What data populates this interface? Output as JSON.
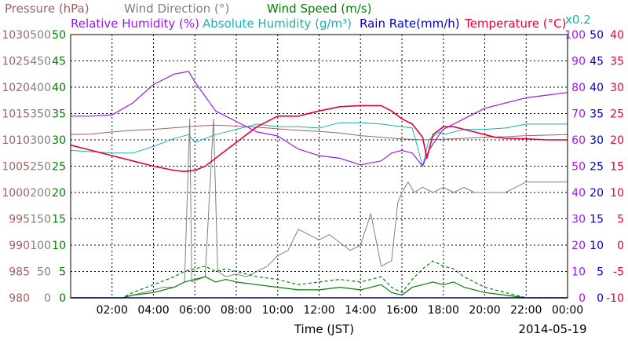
{
  "colors": {
    "pressure": "#a06262",
    "wind_direction": "#808080",
    "wind_speed": "#008000",
    "relative_humidity": "#9b19e6",
    "absolute_humidity": "#1ab2ad",
    "rain_rate": "#0000cc",
    "temperature": "#e6003a",
    "grid": "#000000"
  },
  "chart_data": {
    "type": "line",
    "legend": {
      "row1": [
        {
          "key": "pressure",
          "text": "Pressure (hPa)"
        },
        {
          "key": "wind_direction",
          "text": "Wind Direction (°)"
        },
        {
          "key": "wind_speed",
          "text": "Wind Speed (m/s)"
        }
      ],
      "row2": [
        {
          "key": "relative_humidity",
          "text": "Relative Humidity (%)"
        },
        {
          "key": "absolute_humidity",
          "text": "Absolute Humidity (g/m³)"
        },
        {
          "key": "rain_rate",
          "text": "Rain Rate(mm/h)"
        },
        {
          "key": "temperature",
          "text": "Temperature (°C)"
        }
      ],
      "rain_scale": "x0.2"
    },
    "xlabel": "Time (JST)",
    "date": "2014-05-19",
    "x_range": [
      "00:00",
      "24:00"
    ],
    "x_ticks": [
      "02:00",
      "04:00",
      "06:00",
      "08:00",
      "10:00",
      "12:00",
      "14:00",
      "16:00",
      "18:00",
      "20:00",
      "22:00",
      "00:00"
    ],
    "axes": {
      "pressure": {
        "range": [
          980,
          1030
        ],
        "ticks": [
          "980",
          "985",
          "990",
          "995",
          "1000",
          "1005",
          "1010",
          "1015",
          "1020",
          "1025",
          "1030"
        ]
      },
      "wind_direction": {
        "range": [
          0,
          500
        ],
        "ticks": [
          "0",
          "50",
          "100",
          "150",
          "200",
          "250",
          "300",
          "350",
          "400",
          "450",
          "500"
        ]
      },
      "wind_speed": {
        "range": [
          0,
          50
        ],
        "ticks": [
          "0",
          "5",
          "10",
          "15",
          "20",
          "25",
          "30",
          "35",
          "40",
          "45",
          "50"
        ]
      },
      "relative_humidity": {
        "range": [
          0,
          100
        ],
        "ticks": [
          "0",
          "10",
          "20",
          "30",
          "40",
          "50",
          "60",
          "70",
          "80",
          "90",
          "100"
        ]
      },
      "rain_rate": {
        "range": [
          0,
          50
        ],
        "ticks": [
          "0",
          "5",
          "10",
          "15",
          "20",
          "25",
          "30",
          "35",
          "40",
          "45",
          "50"
        ]
      },
      "temperature": {
        "range": [
          -10,
          40
        ],
        "ticks": [
          "-10",
          "-5",
          "0",
          "5",
          "10",
          "15",
          "20",
          "25",
          "30",
          "35",
          "40"
        ]
      }
    },
    "grid": true,
    "series": [
      {
        "key": "pressure",
        "name": "Pressure (hPa)",
        "axis": "pressure",
        "points": [
          [
            0,
            1011
          ],
          [
            1,
            1011.1
          ],
          [
            2,
            1011.5
          ],
          [
            3,
            1011.8
          ],
          [
            4,
            1012
          ],
          [
            5,
            1012.3
          ],
          [
            6,
            1012.6
          ],
          [
            7,
            1012.8
          ],
          [
            8,
            1012.6
          ],
          [
            9,
            1012.4
          ],
          [
            10,
            1012.1
          ],
          [
            11,
            1011.8
          ],
          [
            12,
            1011.6
          ],
          [
            13,
            1011.3
          ],
          [
            14,
            1010.8
          ],
          [
            15,
            1010.5
          ],
          [
            16,
            1010.2
          ],
          [
            17,
            1010
          ],
          [
            18,
            1010.1
          ],
          [
            19,
            1010.3
          ],
          [
            20,
            1010.5
          ],
          [
            21,
            1010.6
          ],
          [
            22,
            1010.8
          ],
          [
            23,
            1010.9
          ],
          [
            24,
            1011
          ]
        ]
      },
      {
        "key": "temperature",
        "name": "Temperature (°C)",
        "axis": "temperature",
        "points": [
          [
            0,
            19
          ],
          [
            1,
            18
          ],
          [
            2,
            17
          ],
          [
            3,
            16
          ],
          [
            4,
            15
          ],
          [
            5,
            14.2
          ],
          [
            5.5,
            14
          ],
          [
            6,
            14.2
          ],
          [
            6.5,
            15
          ],
          [
            7,
            16.5
          ],
          [
            8,
            19.5
          ],
          [
            9,
            22.5
          ],
          [
            10,
            24.5
          ],
          [
            11,
            24.5
          ],
          [
            12,
            25.5
          ],
          [
            13,
            26.3
          ],
          [
            14,
            26.5
          ],
          [
            15,
            26.5
          ],
          [
            15.5,
            25.5
          ],
          [
            16,
            24
          ],
          [
            16.5,
            23
          ],
          [
            17,
            20.5
          ],
          [
            17.2,
            16.5
          ],
          [
            17.5,
            21
          ],
          [
            18,
            22.5
          ],
          [
            18.5,
            22.5
          ],
          [
            19,
            22
          ],
          [
            19.5,
            21.5
          ],
          [
            20,
            21
          ],
          [
            20.5,
            20.5
          ],
          [
            21,
            20.3
          ],
          [
            22,
            20.2
          ],
          [
            23,
            20
          ],
          [
            24,
            20
          ]
        ]
      },
      {
        "key": "relative_humidity",
        "name": "Relative Humidity (%)",
        "axis": "relative_humidity",
        "points": [
          [
            0,
            69
          ],
          [
            1,
            69
          ],
          [
            2,
            69.5
          ],
          [
            3,
            74
          ],
          [
            4,
            81
          ],
          [
            5,
            85
          ],
          [
            5.7,
            86
          ],
          [
            6,
            82
          ],
          [
            7,
            71
          ],
          [
            8,
            67
          ],
          [
            9,
            63
          ],
          [
            10,
            61.5
          ],
          [
            11,
            56.5
          ],
          [
            12,
            54
          ],
          [
            13,
            53
          ],
          [
            14,
            50.5
          ],
          [
            15,
            52
          ],
          [
            15.5,
            55
          ],
          [
            16,
            56
          ],
          [
            16.5,
            55
          ],
          [
            17,
            50
          ],
          [
            17.3,
            56
          ],
          [
            17.8,
            62
          ],
          [
            18,
            64
          ],
          [
            18.5,
            66
          ],
          [
            19,
            68
          ],
          [
            20,
            72
          ],
          [
            21,
            74
          ],
          [
            22,
            76
          ],
          [
            23,
            77
          ],
          [
            24,
            78
          ]
        ]
      },
      {
        "key": "absolute_humidity",
        "name": "Absolute Humidity (g/m³)",
        "axis": "relative_humidity",
        "points": [
          [
            0,
            56
          ],
          [
            1,
            55.5
          ],
          [
            2,
            55
          ],
          [
            3,
            55
          ],
          [
            4,
            57.5
          ],
          [
            5,
            60.5
          ],
          [
            5.7,
            62
          ],
          [
            6,
            59
          ],
          [
            7,
            62
          ],
          [
            8,
            64
          ],
          [
            9,
            66
          ],
          [
            10,
            65
          ],
          [
            11,
            65
          ],
          [
            12,
            64.5
          ],
          [
            13,
            66.5
          ],
          [
            14,
            66.5
          ],
          [
            15,
            66
          ],
          [
            16,
            65
          ],
          [
            16.5,
            64.5
          ],
          [
            17,
            50
          ],
          [
            17.3,
            60
          ],
          [
            17.8,
            63
          ],
          [
            18,
            62
          ],
          [
            19,
            64
          ],
          [
            20,
            64
          ],
          [
            21,
            64.5
          ],
          [
            22,
            66
          ],
          [
            23,
            66
          ],
          [
            24,
            66
          ]
        ]
      },
      {
        "key": "wind_direction",
        "name": "Wind Direction (°)",
        "axis": "wind_direction",
        "points": [
          [
            0,
            0
          ],
          [
            2,
            0
          ],
          [
            2.5,
            0
          ],
          [
            3,
            5
          ],
          [
            3.5,
            10
          ],
          [
            4,
            15
          ],
          [
            4.5,
            20
          ],
          [
            5,
            20
          ],
          [
            5.5,
            30
          ],
          [
            5.75,
            340
          ],
          [
            5.85,
            30
          ],
          [
            6.5,
            40
          ],
          [
            6.9,
            340
          ],
          [
            7.1,
            50
          ],
          [
            7.5,
            40
          ],
          [
            8,
            45
          ],
          [
            8.5,
            40
          ],
          [
            9,
            50
          ],
          [
            9.5,
            60
          ],
          [
            10,
            80
          ],
          [
            10.5,
            90
          ],
          [
            11,
            130
          ],
          [
            11.5,
            120
          ],
          [
            12,
            110
          ],
          [
            12.5,
            120
          ],
          [
            13,
            105
          ],
          [
            13.5,
            90
          ],
          [
            14,
            100
          ],
          [
            14.5,
            160
          ],
          [
            15,
            60
          ],
          [
            15.5,
            70
          ],
          [
            15.8,
            180
          ],
          [
            16,
            200
          ],
          [
            16.3,
            220
          ],
          [
            16.6,
            200
          ],
          [
            17,
            210
          ],
          [
            17.5,
            200
          ],
          [
            18,
            210
          ],
          [
            18.5,
            200
          ],
          [
            19,
            210
          ],
          [
            19.5,
            200
          ],
          [
            20,
            200
          ],
          [
            20.5,
            200
          ],
          [
            21,
            200
          ],
          [
            21.5,
            210
          ],
          [
            22,
            220
          ],
          [
            22.5,
            220
          ],
          [
            23,
            220
          ],
          [
            24,
            220
          ]
        ]
      },
      {
        "key": "wind_speed_avg",
        "name": "Wind Speed (m/s)",
        "axis": "wind_speed",
        "points": [
          [
            0,
            0
          ],
          [
            2.5,
            0
          ],
          [
            3,
            0.5
          ],
          [
            4,
            1
          ],
          [
            5,
            2
          ],
          [
            5.5,
            3
          ],
          [
            6,
            3.5
          ],
          [
            6.5,
            4
          ],
          [
            7,
            3
          ],
          [
            7.5,
            3.5
          ],
          [
            8,
            3
          ],
          [
            9,
            2.5
          ],
          [
            10,
            2
          ],
          [
            11,
            1.5
          ],
          [
            12,
            1.5
          ],
          [
            13,
            2
          ],
          [
            14,
            1.5
          ],
          [
            15,
            2.5
          ],
          [
            15.5,
            1
          ],
          [
            16,
            0.5
          ],
          [
            16.5,
            2
          ],
          [
            17,
            2.5
          ],
          [
            17.5,
            3
          ],
          [
            18,
            2.5
          ],
          [
            18.5,
            3
          ],
          [
            19,
            2
          ],
          [
            19.5,
            1.5
          ],
          [
            20,
            1
          ],
          [
            21,
            0.5
          ],
          [
            22,
            0
          ],
          [
            24,
            0
          ]
        ]
      },
      {
        "key": "wind_speed_gust",
        "name": "Wind Speed (m/s)",
        "axis": "wind_speed",
        "points": [
          [
            0,
            0
          ],
          [
            2.5,
            0
          ],
          [
            3,
            1
          ],
          [
            4,
            2.5
          ],
          [
            5,
            4
          ],
          [
            5.5,
            5
          ],
          [
            6,
            5.5
          ],
          [
            6.5,
            6
          ],
          [
            7,
            5
          ],
          [
            7.5,
            5.5
          ],
          [
            8,
            5
          ],
          [
            9,
            4
          ],
          [
            10,
            3.5
          ],
          [
            11,
            2.5
          ],
          [
            12,
            3
          ],
          [
            13,
            3.5
          ],
          [
            14,
            3
          ],
          [
            15,
            4
          ],
          [
            15.5,
            2
          ],
          [
            16,
            1
          ],
          [
            16.5,
            3.5
          ],
          [
            17,
            5.5
          ],
          [
            17.5,
            7
          ],
          [
            18,
            6
          ],
          [
            18.5,
            5.5
          ],
          [
            19,
            4
          ],
          [
            19.5,
            3
          ],
          [
            20,
            2
          ],
          [
            21,
            1
          ],
          [
            22,
            0
          ],
          [
            24,
            0
          ]
        ]
      },
      {
        "key": "rain_rate",
        "name": "Rain Rate(mm/h)",
        "axis": "rain_rate",
        "points": [
          [
            0,
            0
          ],
          [
            24,
            0
          ]
        ]
      }
    ]
  }
}
